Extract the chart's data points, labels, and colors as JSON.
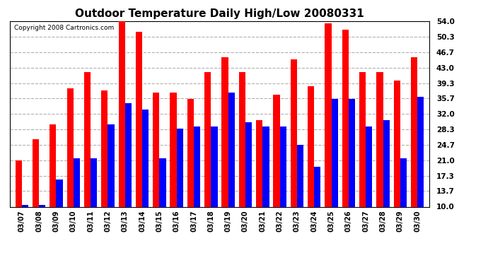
{
  "title": "Outdoor Temperature Daily High/Low 20080331",
  "copyright": "Copyright 2008 Cartronics.com",
  "dates": [
    "03/07",
    "03/08",
    "03/09",
    "03/10",
    "03/11",
    "03/12",
    "03/13",
    "03/14",
    "03/15",
    "03/16",
    "03/17",
    "03/18",
    "03/19",
    "03/20",
    "03/21",
    "03/22",
    "03/23",
    "03/24",
    "03/25",
    "03/26",
    "03/27",
    "03/28",
    "03/29",
    "03/30"
  ],
  "highs": [
    21.0,
    26.0,
    29.5,
    38.0,
    42.0,
    37.5,
    55.0,
    51.5,
    37.0,
    37.0,
    35.5,
    42.0,
    45.5,
    42.0,
    30.5,
    36.5,
    45.0,
    38.5,
    53.5,
    52.0,
    42.0,
    42.0,
    40.0,
    45.5
  ],
  "lows": [
    10.5,
    10.5,
    16.5,
    21.5,
    21.5,
    29.5,
    34.5,
    33.0,
    21.5,
    28.5,
    29.0,
    29.0,
    37.0,
    30.0,
    29.0,
    29.0,
    24.7,
    19.5,
    35.5,
    35.5,
    29.0,
    30.5,
    21.5,
    36.0
  ],
  "high_color": "#ff0000",
  "low_color": "#0000ff",
  "bg_color": "#ffffff",
  "plot_bg_color": "#ffffff",
  "grid_color": "#b0b0b0",
  "yticks": [
    10.0,
    13.7,
    17.3,
    21.0,
    24.7,
    28.3,
    32.0,
    35.7,
    39.3,
    43.0,
    46.7,
    50.3,
    54.0
  ],
  "ymin": 10.0,
  "ymax": 54.0,
  "bar_width": 0.38
}
